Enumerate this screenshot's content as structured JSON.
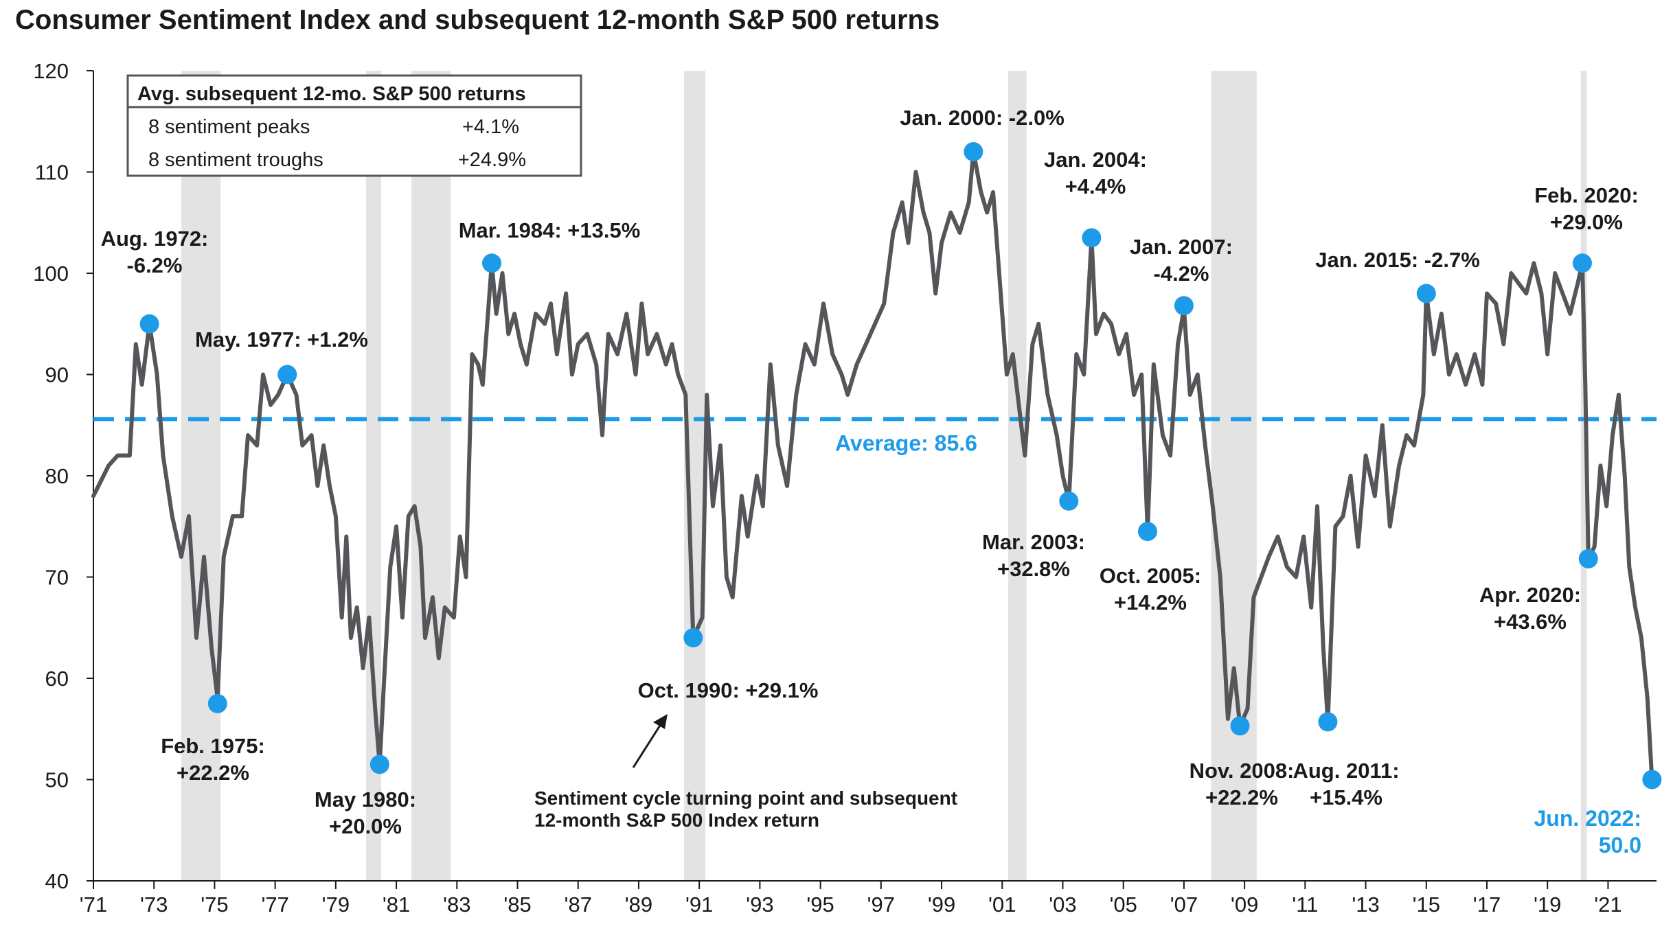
{
  "chart_data": {
    "type": "line",
    "title": "Consumer Sentiment Index and subsequent 12-month S&P 500 returns",
    "xlabel": "",
    "ylabel": "",
    "ylim": [
      40,
      120
    ],
    "yticks": [
      40,
      50,
      60,
      70,
      80,
      90,
      100,
      110,
      120
    ],
    "xlim": [
      1971,
      2022.6
    ],
    "xticks": [
      {
        "year": 1971,
        "label": "'71"
      },
      {
        "year": 1973,
        "label": "'73"
      },
      {
        "year": 1975,
        "label": "'75"
      },
      {
        "year": 1977,
        "label": "'77"
      },
      {
        "year": 1979,
        "label": "'79"
      },
      {
        "year": 1981,
        "label": "'81"
      },
      {
        "year": 1983,
        "label": "'83"
      },
      {
        "year": 1985,
        "label": "'85"
      },
      {
        "year": 1987,
        "label": "'87"
      },
      {
        "year": 1989,
        "label": "'89"
      },
      {
        "year": 1991,
        "label": "'91"
      },
      {
        "year": 1993,
        "label": "'93"
      },
      {
        "year": 1995,
        "label": "'95"
      },
      {
        "year": 1997,
        "label": "'97"
      },
      {
        "year": 1999,
        "label": "'99"
      },
      {
        "year": 2001,
        "label": "'01"
      },
      {
        "year": 2003,
        "label": "'03"
      },
      {
        "year": 2005,
        "label": "'05"
      },
      {
        "year": 2007,
        "label": "'07"
      },
      {
        "year": 2009,
        "label": "'09"
      },
      {
        "year": 2011,
        "label": "'11"
      },
      {
        "year": 2013,
        "label": "'13"
      },
      {
        "year": 2015,
        "label": "'15"
      },
      {
        "year": 2017,
        "label": "'17"
      },
      {
        "year": 2019,
        "label": "'19"
      },
      {
        "year": 2021,
        "label": "'21"
      }
    ],
    "recessions": [
      [
        1973.9,
        1975.2
      ],
      [
        1980.0,
        1980.5
      ],
      [
        1981.5,
        1982.8
      ],
      [
        1990.5,
        1991.2
      ],
      [
        2001.2,
        2001.8
      ],
      [
        2007.9,
        2009.4
      ],
      [
        2020.1,
        2020.3
      ]
    ],
    "series": [
      {
        "values": [
          [
            1971.0,
            78
          ],
          [
            1971.5,
            81
          ],
          [
            1971.8,
            82
          ],
          [
            1972.2,
            82
          ],
          [
            1972.4,
            93
          ],
          [
            1972.6,
            89
          ],
          [
            1972.85,
            95
          ],
          [
            1973.1,
            90
          ],
          [
            1973.3,
            82
          ],
          [
            1973.6,
            76
          ],
          [
            1973.9,
            72
          ],
          [
            1974.15,
            76
          ],
          [
            1974.4,
            64
          ],
          [
            1974.65,
            72
          ],
          [
            1974.9,
            63
          ],
          [
            1975.1,
            58
          ],
          [
            1975.3,
            72
          ],
          [
            1975.6,
            76
          ],
          [
            1975.9,
            76
          ],
          [
            1976.1,
            84
          ],
          [
            1976.4,
            83
          ],
          [
            1976.6,
            90
          ],
          [
            1976.85,
            87
          ],
          [
            1977.1,
            88
          ],
          [
            1977.4,
            90
          ],
          [
            1977.7,
            88
          ],
          [
            1977.9,
            83
          ],
          [
            1978.2,
            84
          ],
          [
            1978.4,
            79
          ],
          [
            1978.6,
            83
          ],
          [
            1978.8,
            79
          ],
          [
            1979.0,
            76
          ],
          [
            1979.2,
            66
          ],
          [
            1979.35,
            74
          ],
          [
            1979.5,
            64
          ],
          [
            1979.7,
            67
          ],
          [
            1979.9,
            61
          ],
          [
            1980.1,
            66
          ],
          [
            1980.3,
            57
          ],
          [
            1980.45,
            51.5
          ],
          [
            1980.6,
            60
          ],
          [
            1980.8,
            71
          ],
          [
            1981.0,
            75
          ],
          [
            1981.2,
            66
          ],
          [
            1981.4,
            76
          ],
          [
            1981.6,
            77
          ],
          [
            1981.8,
            73
          ],
          [
            1981.95,
            64
          ],
          [
            1982.2,
            68
          ],
          [
            1982.4,
            62
          ],
          [
            1982.6,
            67
          ],
          [
            1982.9,
            66
          ],
          [
            1983.1,
            74
          ],
          [
            1983.3,
            70
          ],
          [
            1983.5,
            92
          ],
          [
            1983.7,
            91
          ],
          [
            1983.85,
            89
          ],
          [
            1984.15,
            101
          ],
          [
            1984.3,
            96
          ],
          [
            1984.5,
            100
          ],
          [
            1984.7,
            94
          ],
          [
            1984.9,
            96
          ],
          [
            1985.1,
            93
          ],
          [
            1985.3,
            91
          ],
          [
            1985.6,
            96
          ],
          [
            1985.9,
            95
          ],
          [
            1986.1,
            97
          ],
          [
            1986.3,
            92
          ],
          [
            1986.6,
            98
          ],
          [
            1986.8,
            90
          ],
          [
            1987.0,
            93
          ],
          [
            1987.3,
            94
          ],
          [
            1987.6,
            91
          ],
          [
            1987.8,
            84
          ],
          [
            1988.0,
            94
          ],
          [
            1988.3,
            92
          ],
          [
            1988.6,
            96
          ],
          [
            1988.9,
            90
          ],
          [
            1989.1,
            97
          ],
          [
            1989.3,
            92
          ],
          [
            1989.6,
            94
          ],
          [
            1989.9,
            91
          ],
          [
            1990.1,
            93
          ],
          [
            1990.3,
            90
          ],
          [
            1990.55,
            88
          ],
          [
            1990.8,
            64
          ],
          [
            1991.1,
            66
          ],
          [
            1991.25,
            88
          ],
          [
            1991.45,
            77
          ],
          [
            1991.7,
            83
          ],
          [
            1991.9,
            70
          ],
          [
            1992.1,
            68
          ],
          [
            1992.4,
            78
          ],
          [
            1992.6,
            74
          ],
          [
            1992.9,
            80
          ],
          [
            1993.1,
            77
          ],
          [
            1993.35,
            91
          ],
          [
            1993.6,
            83
          ],
          [
            1993.9,
            79
          ],
          [
            1994.2,
            88
          ],
          [
            1994.5,
            93
          ],
          [
            1994.8,
            91
          ],
          [
            1995.1,
            97
          ],
          [
            1995.4,
            92
          ],
          [
            1995.7,
            90
          ],
          [
            1995.9,
            88
          ],
          [
            1996.2,
            91
          ],
          [
            1996.5,
            93
          ],
          [
            1996.8,
            95
          ],
          [
            1997.1,
            97
          ],
          [
            1997.4,
            104
          ],
          [
            1997.7,
            107
          ],
          [
            1997.9,
            103
          ],
          [
            1998.15,
            110
          ],
          [
            1998.4,
            106
          ],
          [
            1998.6,
            104
          ],
          [
            1998.8,
            98
          ],
          [
            1999.0,
            103
          ],
          [
            1999.3,
            106
          ],
          [
            1999.6,
            104
          ],
          [
            1999.9,
            107
          ],
          [
            2000.05,
            112
          ],
          [
            2000.3,
            108
          ],
          [
            2000.5,
            106
          ],
          [
            2000.7,
            108
          ],
          [
            2000.95,
            98
          ],
          [
            2001.15,
            90
          ],
          [
            2001.35,
            92
          ],
          [
            2001.55,
            87
          ],
          [
            2001.75,
            82
          ],
          [
            2002.0,
            93
          ],
          [
            2002.2,
            95
          ],
          [
            2002.5,
            88
          ],
          [
            2002.8,
            84
          ],
          [
            2003.0,
            80
          ],
          [
            2003.2,
            77.5
          ],
          [
            2003.45,
            92
          ],
          [
            2003.7,
            90
          ],
          [
            2003.95,
            103.5
          ],
          [
            2004.1,
            94
          ],
          [
            2004.35,
            96
          ],
          [
            2004.6,
            95
          ],
          [
            2004.85,
            92
          ],
          [
            2005.1,
            94
          ],
          [
            2005.35,
            88
          ],
          [
            2005.6,
            90
          ],
          [
            2005.8,
            74.5
          ],
          [
            2006.0,
            91
          ],
          [
            2006.3,
            84
          ],
          [
            2006.55,
            82
          ],
          [
            2006.8,
            93
          ],
          [
            2007.0,
            96.5
          ],
          [
            2007.2,
            88
          ],
          [
            2007.45,
            90
          ],
          [
            2007.7,
            83
          ],
          [
            2007.95,
            77
          ],
          [
            2008.2,
            70
          ],
          [
            2008.45,
            56
          ],
          [
            2008.65,
            61
          ],
          [
            2008.85,
            55.3
          ],
          [
            2009.1,
            57
          ],
          [
            2009.3,
            68
          ],
          [
            2009.55,
            70
          ],
          [
            2009.8,
            72
          ],
          [
            2010.1,
            74
          ],
          [
            2010.4,
            71
          ],
          [
            2010.7,
            70
          ],
          [
            2010.95,
            74
          ],
          [
            2011.2,
            67
          ],
          [
            2011.4,
            77
          ],
          [
            2011.6,
            63
          ],
          [
            2011.75,
            55.7
          ],
          [
            2012.0,
            75
          ],
          [
            2012.25,
            76
          ],
          [
            2012.5,
            80
          ],
          [
            2012.75,
            73
          ],
          [
            2013.0,
            82
          ],
          [
            2013.3,
            78
          ],
          [
            2013.55,
            85
          ],
          [
            2013.8,
            75
          ],
          [
            2014.1,
            81
          ],
          [
            2014.35,
            84
          ],
          [
            2014.6,
            83
          ],
          [
            2014.9,
            88
          ],
          [
            2015.0,
            98
          ],
          [
            2015.25,
            92
          ],
          [
            2015.5,
            96
          ],
          [
            2015.75,
            90
          ],
          [
            2016.0,
            92
          ],
          [
            2016.3,
            89
          ],
          [
            2016.6,
            92
          ],
          [
            2016.85,
            89
          ],
          [
            2017.0,
            98
          ],
          [
            2017.3,
            97
          ],
          [
            2017.55,
            93
          ],
          [
            2017.8,
            100
          ],
          [
            2018.05,
            99
          ],
          [
            2018.3,
            98
          ],
          [
            2018.55,
            101
          ],
          [
            2018.8,
            98
          ],
          [
            2019.0,
            92
          ],
          [
            2019.25,
            100
          ],
          [
            2019.5,
            98
          ],
          [
            2019.75,
            96
          ],
          [
            2020.0,
            99
          ],
          [
            2020.15,
            101
          ],
          [
            2020.25,
            89
          ],
          [
            2020.35,
            71.8
          ],
          [
            2020.55,
            73
          ],
          [
            2020.75,
            81
          ],
          [
            2020.95,
            77
          ],
          [
            2021.15,
            84
          ],
          [
            2021.35,
            88
          ],
          [
            2021.55,
            80
          ],
          [
            2021.7,
            71
          ],
          [
            2021.9,
            67
          ],
          [
            2022.1,
            64
          ],
          [
            2022.3,
            58
          ],
          [
            2022.45,
            50
          ]
        ]
      }
    ],
    "reference_line": {
      "value": 85.6,
      "label": "Average: 85.6",
      "color": "#1e9be8"
    },
    "points": [
      {
        "x": 1972.85,
        "y": 95,
        "label": [
          "Aug. 1972:",
          "-6.2%"
        ]
      },
      {
        "x": 1975.1,
        "y": 57.5,
        "label": [
          "Feb. 1975:",
          "+22.2%"
        ]
      },
      {
        "x": 1977.4,
        "y": 90,
        "label": [
          "May. 1977: +1.2%"
        ]
      },
      {
        "x": 1980.45,
        "y": 51.5,
        "label": [
          "May 1980:",
          "+20.0%"
        ]
      },
      {
        "x": 1984.15,
        "y": 101,
        "label": [
          "Mar. 1984: +13.5%"
        ]
      },
      {
        "x": 1990.8,
        "y": 64,
        "label": [
          "Oct. 1990: +29.1%"
        ]
      },
      {
        "x": 2000.05,
        "y": 112,
        "label": [
          "Jan. 2000: -2.0%"
        ]
      },
      {
        "x": 2003.2,
        "y": 77.5,
        "label": [
          "Mar. 2003:",
          "+32.8%"
        ]
      },
      {
        "x": 2003.95,
        "y": 103.5,
        "label": [
          "Jan. 2004:",
          "+4.4%"
        ]
      },
      {
        "x": 2005.8,
        "y": 74.5,
        "label": [
          "Oct. 2005:",
          "+14.2%"
        ]
      },
      {
        "x": 2007.0,
        "y": 96.8,
        "label": [
          "Jan. 2007:",
          "-4.2%"
        ]
      },
      {
        "x": 2008.85,
        "y": 55.3,
        "label": [
          "Nov. 2008:",
          "+22.2%"
        ]
      },
      {
        "x": 2011.75,
        "y": 55.7,
        "label": [
          "Aug. 2011:",
          "+15.4%"
        ]
      },
      {
        "x": 2015.0,
        "y": 98,
        "label": [
          "Jan. 2015: -2.7%"
        ]
      },
      {
        "x": 2020.15,
        "y": 101,
        "label": [
          "Feb. 2020:",
          "+29.0%"
        ]
      },
      {
        "x": 2020.35,
        "y": 71.8,
        "label": [
          "Apr. 2020:",
          "+43.6%"
        ]
      },
      {
        "x": 2022.45,
        "y": 50,
        "label": [
          "Jun. 2022:",
          "50.0"
        ],
        "highlight": true
      }
    ],
    "annotation": [
      "Sentiment cycle turning point and subsequent",
      "12-month S&P 500 Index return"
    ],
    "table": {
      "header": "Avg. subsequent 12-mo. S&P 500 returns",
      "rows": [
        {
          "label": "8 sentiment peaks",
          "value": "+4.1%"
        },
        {
          "label": "8 sentiment troughs",
          "value": "+24.9%"
        }
      ]
    },
    "colors": {
      "line": "#545659",
      "point": "#1e9be8",
      "recession": "#e3e3e3",
      "text": "#1a1a1a"
    }
  }
}
